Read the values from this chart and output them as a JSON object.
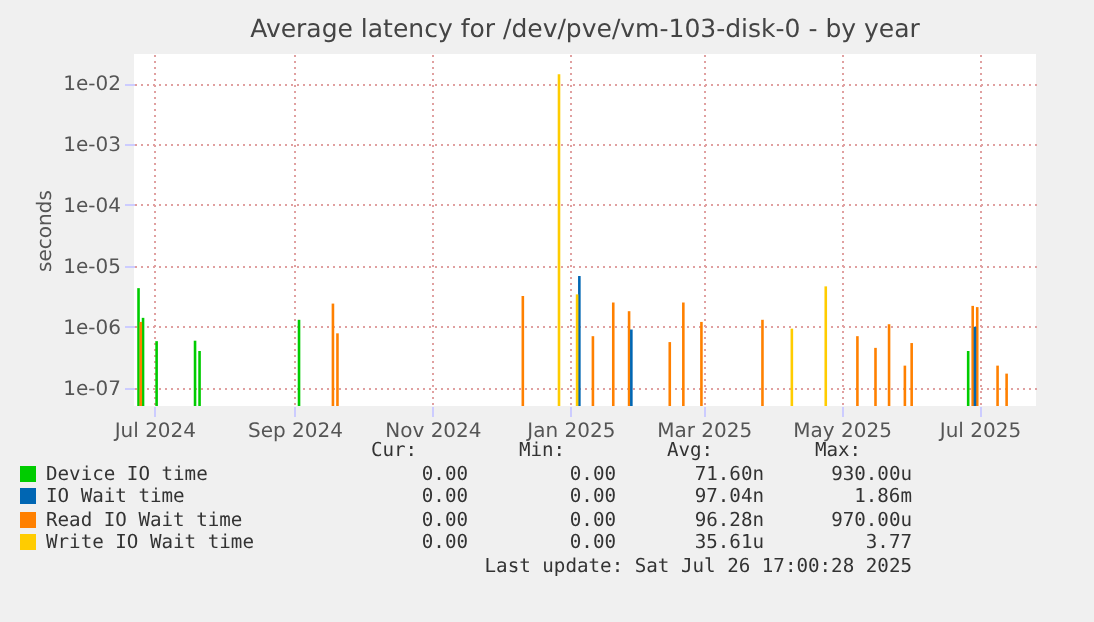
{
  "chart_data": {
    "type": "bar",
    "title": "Average latency for /dev/pve/vm-103-disk-0 - by year",
    "ylabel": "seconds",
    "log": "y",
    "grid": true,
    "legend": "bottom",
    "xlim": [
      "2024-06-22",
      "2025-07-26"
    ],
    "xticks": [
      {
        "value": "2024-07-01",
        "label": "Jul 2024"
      },
      {
        "value": "2024-09-01",
        "label": "Sep 2024"
      },
      {
        "value": "2024-11-01",
        "label": "Nov 2024"
      },
      {
        "value": "2025-01-01",
        "label": "Jan 2025"
      },
      {
        "value": "2025-03-01",
        "label": "Mar 2025"
      },
      {
        "value": "2025-05-01",
        "label": "May 2025"
      },
      {
        "value": "2025-07-01",
        "label": "Jul 2025"
      }
    ],
    "ylim": [
      5e-08,
      0.03
    ],
    "yticks": [
      {
        "value": 1e-07,
        "label": "1e-07"
      },
      {
        "value": 1e-06,
        "label": "1e-06"
      },
      {
        "value": 1e-05,
        "label": "1e-05"
      },
      {
        "value": 0.0001,
        "label": "1e-04"
      },
      {
        "value": 0.001,
        "label": "1e-03"
      },
      {
        "value": 0.01,
        "label": "1e-02"
      }
    ],
    "series": [
      {
        "name": "Device IO time",
        "color": "#00cc00",
        "x": [
          "2024-06-24",
          "2024-06-26",
          "2024-07-02",
          "2024-07-19",
          "2024-07-21",
          "2024-09-03",
          "2025-06-26"
        ],
        "values": [
          4.3e-06,
          1.4e-06,
          5.8e-07,
          5.9e-07,
          4e-07,
          1.3e-06,
          4e-07
        ]
      },
      {
        "name": "IO Wait time",
        "color": "#0066b3",
        "x": [
          "2025-01-05",
          "2025-01-28",
          "2025-06-29"
        ],
        "values": [
          6.8e-06,
          9e-07,
          1e-06
        ]
      },
      {
        "name": "Read IO Wait time",
        "color": "#ff8000",
        "x": [
          "2024-06-25",
          "2024-09-18",
          "2024-09-20",
          "2024-12-11",
          "2025-01-11",
          "2025-01-20",
          "2025-01-27",
          "2025-02-14",
          "2025-02-20",
          "2025-02-28",
          "2025-03-27",
          "2025-05-08",
          "2025-05-16",
          "2025-05-22",
          "2025-05-29",
          "2025-06-01",
          "2025-06-28",
          "2025-06-30",
          "2025-07-09",
          "2025-07-13"
        ],
        "values": [
          1.2e-06,
          2.4e-06,
          7.8e-07,
          3.2e-06,
          7e-07,
          2.5e-06,
          1.8e-06,
          5.6e-07,
          2.5e-06,
          1.2e-06,
          1.3e-06,
          7e-07,
          4.5e-07,
          1.1e-06,
          2.3e-07,
          5.4e-07,
          2.2e-06,
          2.1e-06,
          2.3e-07,
          1.7e-07
        ]
      },
      {
        "name": "Write IO Wait time",
        "color": "#ffcc00",
        "x": [
          "2024-12-27",
          "2025-01-04",
          "2025-04-09",
          "2025-04-24"
        ],
        "values": [
          0.014,
          3.4e-06,
          9.3e-07,
          4.6e-06
        ]
      }
    ],
    "annotations": [
      "Cur:",
      "Min:",
      "Avg:",
      "Max:",
      "0.00",
      "0.00",
      "71.60n",
      "930.00u",
      "0.00",
      "0.00",
      "97.04n",
      "1.86m",
      "0.00",
      "0.00",
      "96.28n",
      "970.00u",
      "0.00",
      "0.00",
      "35.61u",
      "3.77",
      "Last update: Sat Jul 26 17:00:28 2025"
    ]
  }
}
